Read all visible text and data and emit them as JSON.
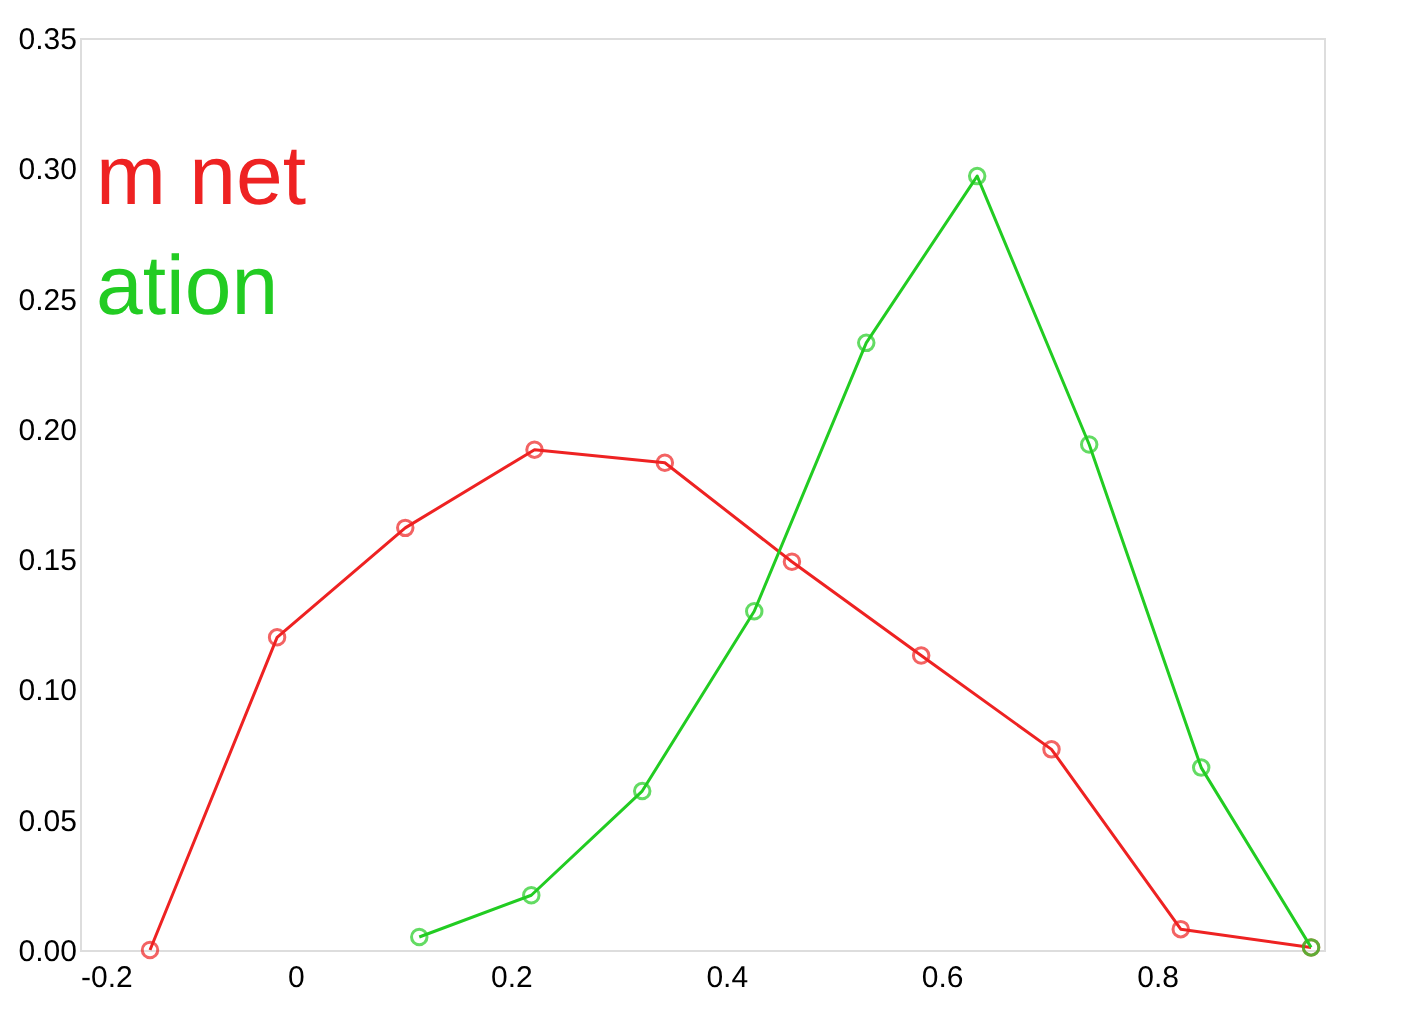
{
  "chart_data": {
    "type": "line",
    "marker": "circle",
    "grid": false,
    "xlim": [
      -0.2,
      0.955
    ],
    "xticks": [
      -0.2,
      0,
      0.2,
      0.4,
      0.6,
      0.8
    ],
    "ylim": [
      0,
      0.35
    ],
    "yticks": [
      {
        "value": 0,
        "label": "0.00"
      },
      {
        "value": 0.05,
        "label": "0.05"
      },
      {
        "value": 0.1,
        "label": "0.10"
      },
      {
        "value": 0.15,
        "label": "0.15"
      },
      {
        "value": 0.2,
        "label": "0.20"
      },
      {
        "value": 0.25,
        "label": "0.25"
      },
      {
        "value": 0.3,
        "label": "0.30"
      },
      {
        "value": 0.35,
        "label": "0.35"
      }
    ],
    "series": [
      {
        "name": "m net",
        "color": "#ee2222",
        "x": [
          -0.135,
          -0.017,
          0.102,
          0.222,
          0.343,
          0.461,
          0.581,
          0.702,
          0.822,
          0.943
        ],
        "values": [
          0,
          0.12,
          0.162,
          0.192,
          0.187,
          0.149,
          0.113,
          0.077,
          0.008,
          0.001
        ]
      },
      {
        "name": "ation",
        "color": "#22cc22",
        "x": [
          0.115,
          0.219,
          0.322,
          0.426,
          0.53,
          0.633,
          0.737,
          0.841,
          0.943
        ],
        "values": [
          0.005,
          0.021,
          0.061,
          0.13,
          0.233,
          0.297,
          0.194,
          0.07,
          0.001
        ]
      }
    ]
  }
}
